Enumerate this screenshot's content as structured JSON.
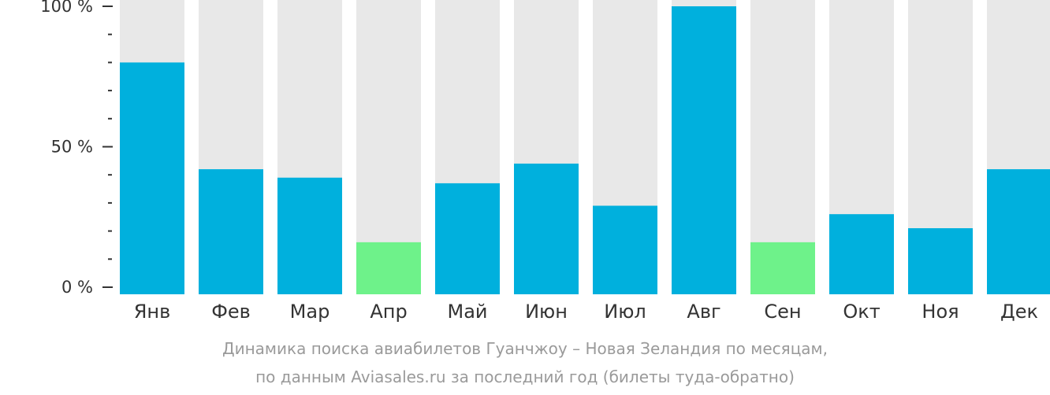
{
  "chart_data": {
    "type": "bar",
    "categories": [
      "Янв",
      "Фев",
      "Мар",
      "Апр",
      "Май",
      "Июн",
      "Июл",
      "Авг",
      "Сен",
      "Окт",
      "Ноя",
      "Дек"
    ],
    "values": [
      80,
      42,
      39,
      16,
      37,
      44,
      29,
      100,
      16,
      26,
      21,
      42
    ],
    "value_unit": "%",
    "highlight": [
      "normal",
      "normal",
      "normal",
      "min",
      "normal",
      "normal",
      "normal",
      "normal",
      "min",
      "normal",
      "normal",
      "normal"
    ],
    "ylim": [
      0,
      100
    ],
    "yticks": [
      {
        "value": 0,
        "label": "0 %"
      },
      {
        "value": 50,
        "label": "50 %"
      },
      {
        "value": 100,
        "label": "100 %"
      }
    ],
    "yminor_step": 10,
    "grid": false,
    "colors": {
      "bar": "#00b0dd",
      "bar_min": "#6ef28a",
      "background_bar": "#e8e8e8",
      "axis": "#333333"
    },
    "caption": [
      "Динамика поиска авиабилетов Гуанчжоу – Новая Зеландия по месяцам,",
      "по данным Aviasales.ru за последний год (билеты туда-обратно)"
    ]
  }
}
